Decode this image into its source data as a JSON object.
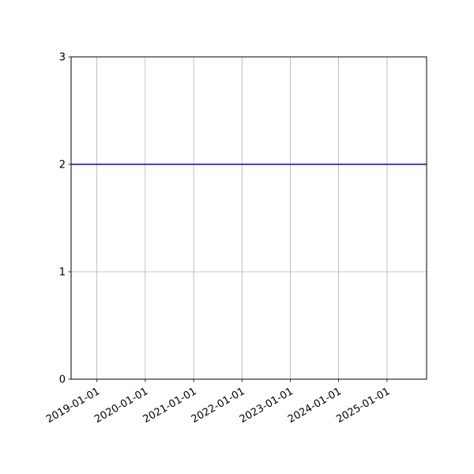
{
  "chart_data": {
    "type": "line",
    "title": "",
    "xlabel": "",
    "ylabel": "",
    "x_axis_type": "date",
    "xlim": [
      "2018-06-20",
      "2025-10-27"
    ],
    "ylim": [
      0,
      3
    ],
    "x_ticks": [
      "2019-01-01",
      "2020-01-01",
      "2021-01-01",
      "2022-01-01",
      "2023-01-01",
      "2024-01-01",
      "2025-01-01"
    ],
    "y_ticks": [
      "0",
      "1",
      "2",
      "3"
    ],
    "grid": true,
    "series": [
      {
        "x": [
          "2018-06-20",
          "2025-10-27"
        ],
        "y": [
          2,
          2
        ],
        "color": "#0000ff"
      }
    ],
    "colors": {
      "grid": "#b0b0b0",
      "line": "#0000ff"
    }
  }
}
